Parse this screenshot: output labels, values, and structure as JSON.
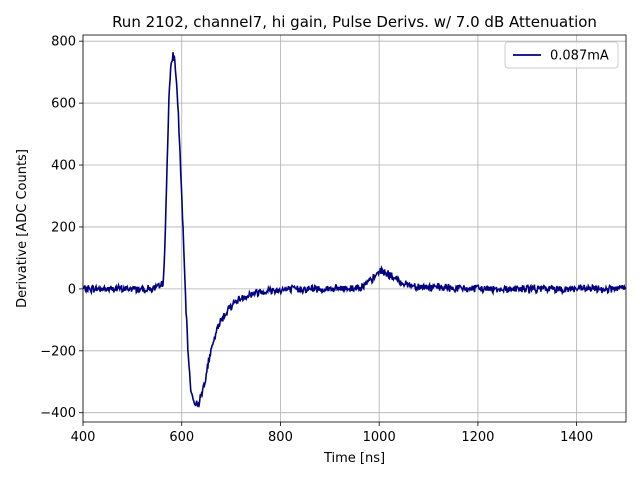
{
  "chart_data": {
    "type": "line",
    "title": "Run 2102, channel7, hi gain, Pulse Derivs. w/ 7.0 dB Attenuation",
    "xlabel": "Time [ns]",
    "ylabel": "Derivative [ADC Counts]",
    "xlim": [
      400,
      1500
    ],
    "ylim": [
      -430,
      820
    ],
    "xticks": [
      400,
      600,
      800,
      1000,
      1200,
      1400
    ],
    "yticks": [
      -400,
      -200,
      0,
      200,
      400,
      600,
      800
    ],
    "xtick_labels": [
      "400",
      "600",
      "800",
      "1000",
      "1200",
      "1400"
    ],
    "ytick_labels": [
      "−400",
      "−200",
      "0",
      "200",
      "400",
      "600",
      "800"
    ],
    "grid": true,
    "legend_position": "top-right",
    "series": [
      {
        "name": "0.087mA",
        "color": "#000080",
        "x": [
          400,
          450,
          500,
          540,
          555,
          562,
          566,
          570,
          574,
          578,
          582,
          585,
          588,
          592,
          596,
          600,
          604,
          608,
          612,
          616,
          620,
          624,
          628,
          632,
          636,
          640,
          645,
          650,
          655,
          660,
          665,
          670,
          675,
          680,
          690,
          700,
          710,
          720,
          735,
          750,
          770,
          800,
          850,
          900,
          950,
          970,
          985,
          995,
          1002,
          1010,
          1020,
          1035,
          1050,
          1070,
          1100,
          1150,
          1200,
          1250,
          1300,
          1350,
          1400,
          1450,
          1500
        ],
        "y": [
          0,
          0,
          0,
          0,
          5,
          20,
          130,
          380,
          620,
          710,
          755,
          745,
          700,
          600,
          460,
          300,
          130,
          -40,
          -180,
          -280,
          -340,
          -360,
          -370,
          -375,
          -360,
          -340,
          -310,
          -270,
          -230,
          -200,
          -170,
          -140,
          -120,
          -100,
          -75,
          -55,
          -40,
          -30,
          -20,
          -12,
          -6,
          -3,
          0,
          0,
          2,
          12,
          28,
          45,
          60,
          55,
          45,
          30,
          18,
          10,
          5,
          2,
          0,
          0,
          0,
          0,
          0,
          0,
          0
        ]
      }
    ]
  }
}
